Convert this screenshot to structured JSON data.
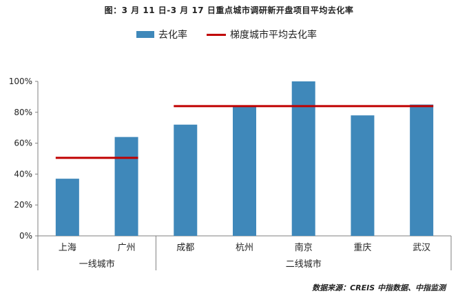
{
  "title": "图：3 月 11 日-3 月 17 日重点城市调研新开盘项目平均去化率",
  "source": "数据来源：CREIS 中指数据、中指监测",
  "colors": {
    "bar": "#3f88ba",
    "line": "#c00000",
    "axis": "#7f7f7f"
  },
  "chart_data": {
    "type": "bar",
    "categories": [
      "上海",
      "广州",
      "成都",
      "杭州",
      "南京",
      "重庆",
      "武汉"
    ],
    "series": [
      {
        "name": "去化率",
        "values": [
          37,
          64,
          72,
          84,
          100,
          78,
          85
        ]
      },
      {
        "name": "梯度城市平均去化率",
        "type": "line",
        "segments": [
          {
            "group": "一线城市",
            "from": 0,
            "to": 1,
            "value": 50.5
          },
          {
            "group": "二线城市",
            "from": 2,
            "to": 6,
            "value": 84
          }
        ]
      }
    ],
    "groups": [
      {
        "label": "一线城市",
        "start": 0,
        "end": 1
      },
      {
        "label": "二线城市",
        "start": 2,
        "end": 6
      }
    ],
    "yticks": [
      "0%",
      "20%",
      "40%",
      "60%",
      "80%",
      "100%"
    ],
    "ylim": [
      0,
      100
    ],
    "xlabel": "",
    "ylabel": "",
    "legend_position": "top"
  }
}
